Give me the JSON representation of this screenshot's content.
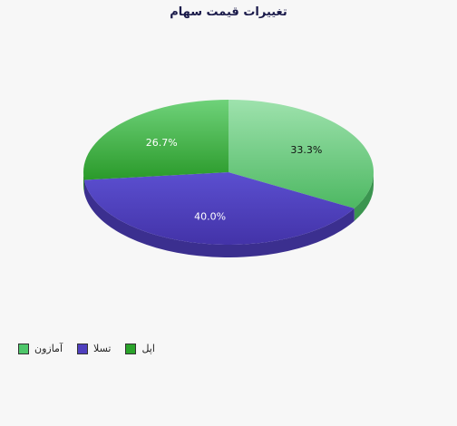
{
  "chart_data": {
    "type": "pie",
    "title": "تغییرات قیمت سهام",
    "categories": [
      "آمازون",
      "تسلا",
      "اپل"
    ],
    "values": [
      33.3,
      40.0,
      26.7
    ],
    "value_labels": [
      "33.3%",
      "40.0%",
      "26.7%"
    ],
    "colors": [
      "#4ec76a",
      "#4f3fbe",
      "#2aa32a"
    ],
    "label_colors": [
      "#111111",
      "#ffffff",
      "#ffffff"
    ],
    "legend_position": "bottom-left"
  }
}
